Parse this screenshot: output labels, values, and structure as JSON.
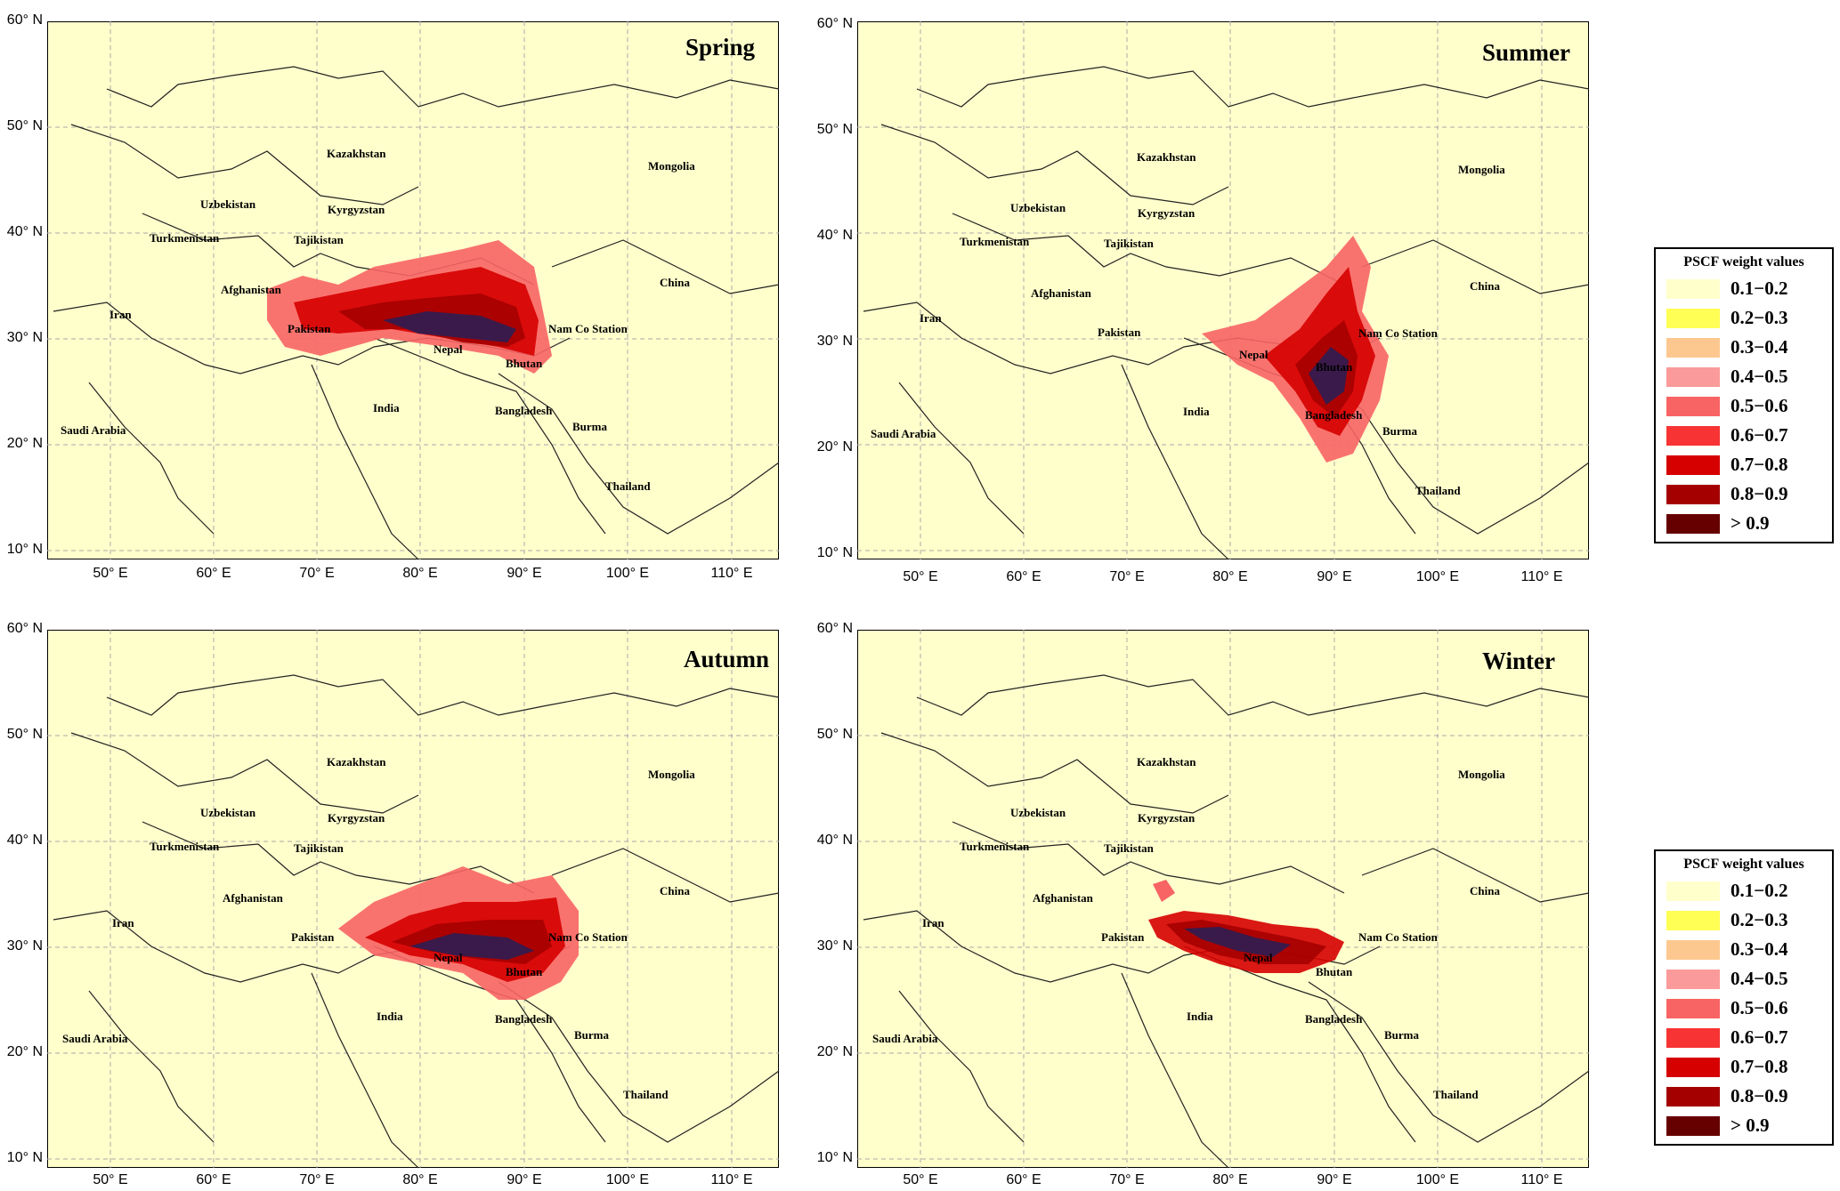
{
  "panels": [
    {
      "id": "spring",
      "season": "Spring"
    },
    {
      "id": "summer",
      "season": "Summer"
    },
    {
      "id": "autumn",
      "season": "Autumn"
    },
    {
      "id": "winter",
      "season": "Winter"
    }
  ],
  "lat_labels": [
    "60° N",
    "50° N",
    "40° N",
    "30° N",
    "20° N",
    "10° N"
  ],
  "lon_labels": [
    "50° E",
    "60° E",
    "70° E",
    "80° E",
    "90° E",
    "100° E",
    "110° E"
  ],
  "countries": {
    "kazakhstan": "Kazakhstan",
    "mongolia": "Mongolia",
    "uzbekistan": "Uzbekistan",
    "kyrgyzstan": "Kyrgyzstan",
    "turkmenistan": "Turkmenistan",
    "tajikistan": "Tajikistan",
    "afghanistan": "Afghanistan",
    "china": "China",
    "iran": "Iran",
    "pakistan": "Pakistan",
    "nam_co": "Nam Co Station",
    "nepal": "Nepal",
    "bhutan": "Bhutan",
    "india": "India",
    "bangladesh": "Bangladesh",
    "saudi": "Saudi Arabia",
    "burma": "Burma",
    "thailand": "Thailand"
  },
  "legend": {
    "title": "PSCF  weight values",
    "items": [
      {
        "label": "0.1−0.2",
        "color": "#ffffcc"
      },
      {
        "label": "0.2−0.3",
        "color": "#ffff55"
      },
      {
        "label": "0.3−0.4",
        "color": "#fdc88f"
      },
      {
        "label": "0.4−0.5",
        "color": "#fb9a9a"
      },
      {
        "label": "0.5−0.6",
        "color": "#f86464"
      },
      {
        "label": "0.6−0.7",
        "color": "#f73333"
      },
      {
        "label": "0.7−0.8",
        "color": "#d60000"
      },
      {
        "label": "0.8−0.9",
        "color": "#a50000"
      },
      {
        "label": "  >  0.9",
        "color": "#660000"
      }
    ]
  }
}
